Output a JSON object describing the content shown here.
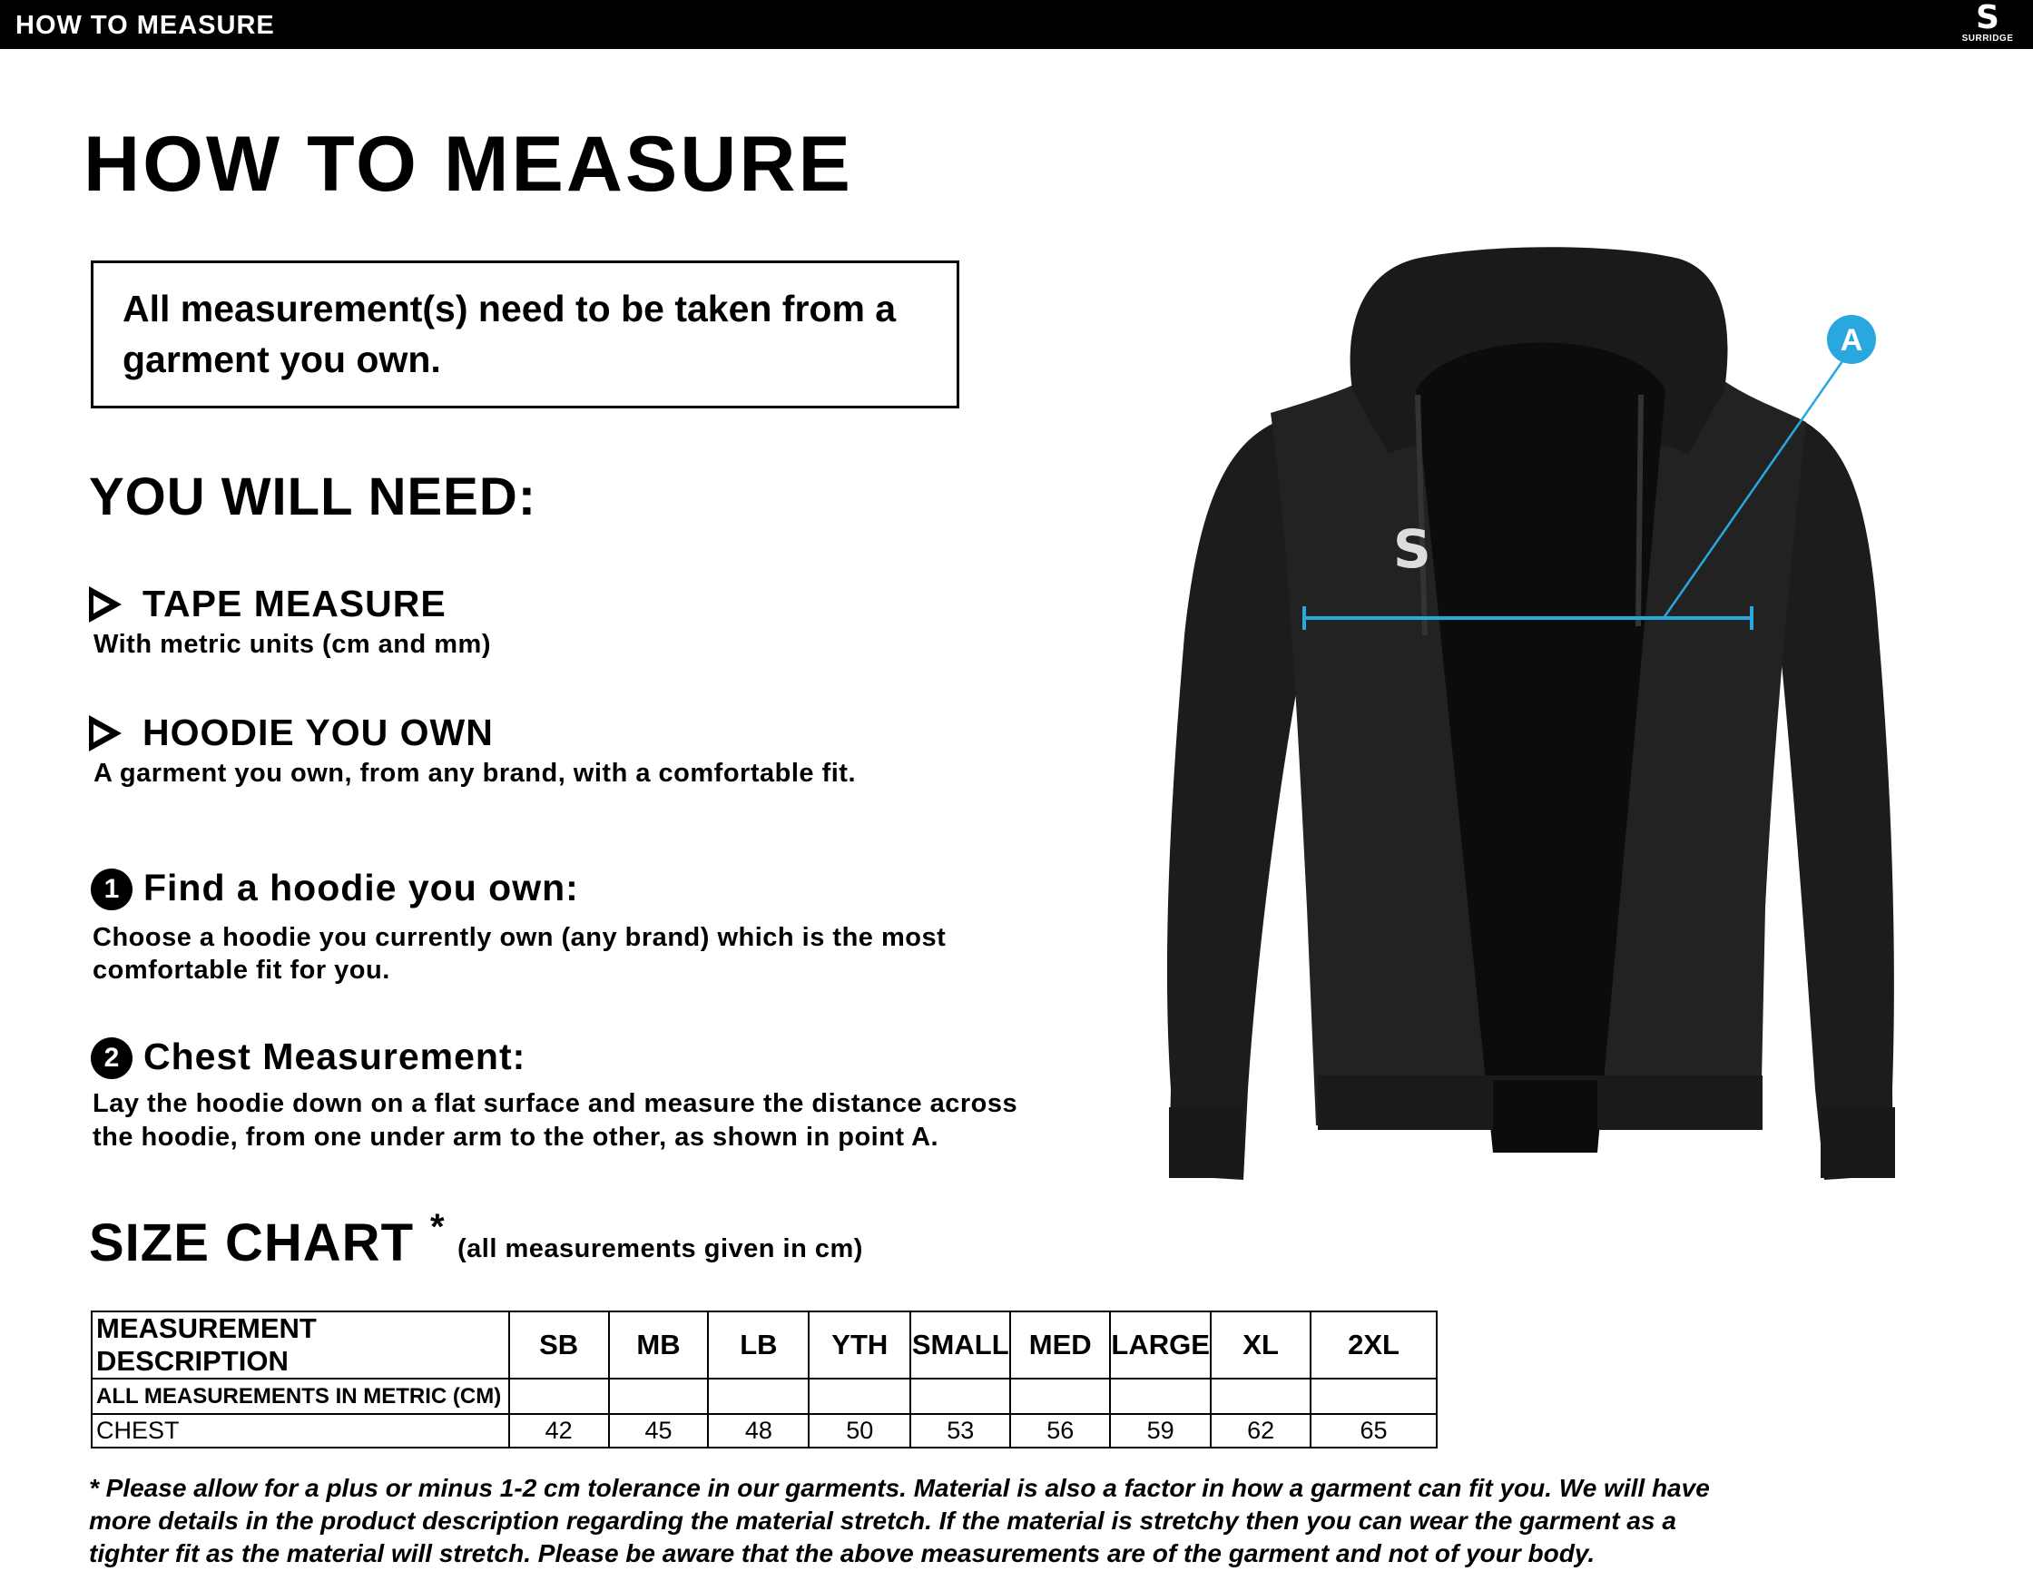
{
  "header": {
    "title": "HOW TO MEASURE",
    "brand": "SURRIDGE",
    "brand_mark": "S"
  },
  "page_title": "HOW TO MEASURE",
  "notice": "All measurement(s) need to be taken from a garment you own.",
  "need": {
    "heading": "YOU WILL NEED:",
    "items": [
      {
        "title": "TAPE MEASURE",
        "desc": "With metric units (cm and mm)"
      },
      {
        "title": "HOODIE YOU OWN",
        "desc": "A garment you own, from any brand, with a comfortable fit."
      }
    ]
  },
  "steps": [
    {
      "number": "1",
      "title": "Find a hoodie you own:",
      "lines": [
        "Choose a hoodie you currently own (any brand) which is the most",
        "comfortable fit for you."
      ]
    },
    {
      "number": "2",
      "title": "Chest Measurement:",
      "lines": [
        "Lay the hoodie down on a flat surface and measure the distance across",
        "the hoodie, from one under arm to the other, as shown in point A."
      ]
    }
  ],
  "size_chart": {
    "heading": "SIZE CHART",
    "asterisk": "*",
    "note": "(all measurements given in cm)",
    "columns": [
      "MEASUREMENT DESCRIPTION",
      "SB",
      "MB",
      "LB",
      "YTH",
      "SMALL",
      "MED",
      "LARGE",
      "XL",
      "2XL"
    ],
    "subheader": "ALL MEASUREMENTS IN METRIC (CM)",
    "rows": [
      {
        "label": "CHEST",
        "values": [
          "42",
          "45",
          "48",
          "50",
          "53",
          "56",
          "59",
          "62",
          "65"
        ]
      }
    ]
  },
  "diagram": {
    "point_label": "A",
    "accent_color": "#29a8e0",
    "garment_color": "#1e1e1e"
  },
  "footnote": [
    "* Please allow for a plus or minus 1-2 cm tolerance in our garments. Material is also a factor in how a garment can fit you. We will have",
    "more details in the product description regarding the material stretch.  If the material is stretchy then you can wear the garment as a",
    "tighter fit as the material will stretch.  Please be aware that the above measurements are of the garment and not of your body."
  ]
}
